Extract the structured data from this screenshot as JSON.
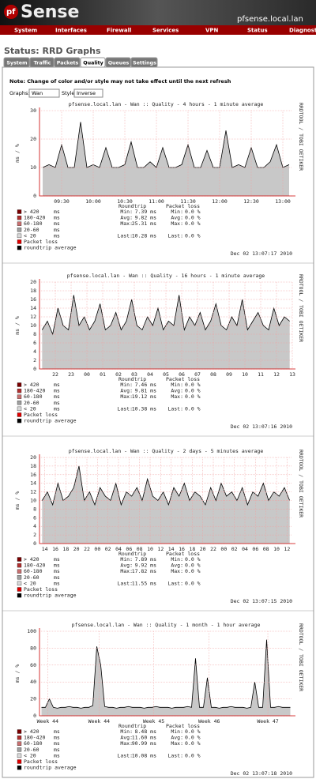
{
  "header": {
    "logo": "Sense",
    "hostname": "pfsense.local.lan"
  },
  "menu": [
    "System",
    "Interfaces",
    "Firewall",
    "Services",
    "VPN",
    "Status",
    "Diagnostic"
  ],
  "page_title": "Status: RRD Graphs",
  "tabs": [
    "System",
    "Traffic",
    "Packets",
    "Quality",
    "Queues",
    "Settings"
  ],
  "active_tab": "Quality",
  "note": "Note: Change of color and/or style may not take effect until the next refresh",
  "controls": {
    "graphs_label": "Graphs:",
    "graphs_value": "Wan",
    "style_label": "Style:",
    "style_value": "Inverse"
  },
  "legend": {
    "items": [
      {
        "label": "> 420",
        "unit": "ms",
        "color": "#7a0000"
      },
      {
        "label": "180-420",
        "unit": "ms",
        "color": "#b03030"
      },
      {
        "label": "60-180",
        "unit": "ms",
        "color": "#c87070"
      },
      {
        "label": "20-60",
        "unit": "ms",
        "color": "#a0a0a0"
      },
      {
        "label": "< 20",
        "unit": "ms",
        "color": "#d8d8d8"
      },
      {
        "label": "Packet loss",
        "color": "#e00000"
      },
      {
        "label": "roundtrip average",
        "color": "#000000"
      }
    ],
    "roundtrip_header": "Roundtrip",
    "loss_header": "Packet loss",
    "stat_labels": [
      "Min:",
      "Avg:",
      "Max:",
      "Last:"
    ]
  },
  "watermark": "RRDTOOL / TOBI OETIKER",
  "charts": [
    {
      "title": "pfsense.local.lan - Wan :: Quality - 4 hours - 1 minute average",
      "y_label": "ms / %",
      "ylim": [
        0,
        30
      ],
      "yticks": [
        0,
        10,
        20,
        30
      ],
      "xlim": [
        0,
        240
      ],
      "xticks": [
        {
          "value": 21,
          "label": "09:30"
        },
        {
          "value": 51,
          "label": "10:00"
        },
        {
          "value": 81,
          "label": "10:30"
        },
        {
          "value": 111,
          "label": "11:00"
        },
        {
          "value": 141,
          "label": "11:30"
        },
        {
          "value": 171,
          "label": "12:00"
        },
        {
          "value": 201,
          "label": "12:30"
        },
        {
          "value": 231,
          "label": "13:00"
        }
      ],
      "values": [
        10,
        11,
        10,
        18,
        10,
        10,
        26,
        10,
        11,
        10,
        17,
        10,
        10,
        11,
        19,
        10,
        10,
        12,
        10,
        17,
        10,
        10,
        11,
        18,
        10,
        10,
        16,
        10,
        10,
        23,
        10,
        11,
        10,
        17,
        10,
        10,
        12,
        18,
        10,
        11
      ],
      "roundtrip": [
        "7.39 ms",
        "9.82 ms",
        "25.31 ms",
        "10.28 ms"
      ],
      "loss": [
        "0.0 %",
        "0.0 %",
        "0.0 %",
        "0.0 %"
      ],
      "timestamp": "Dec 02 13:07:17 2010"
    },
    {
      "title": "pfsense.local.lan - Wan :: Quality - 16 hours - 1 minute average",
      "y_label": "ms / %",
      "ylim": [
        0,
        20
      ],
      "yticks": [
        0,
        2,
        4,
        6,
        8,
        10,
        12,
        14,
        16,
        18,
        20
      ],
      "xlim": [
        0,
        16
      ],
      "xticks": [
        {
          "value": 1,
          "label": "22"
        },
        {
          "value": 2,
          "label": "23"
        },
        {
          "value": 3,
          "label": "00"
        },
        {
          "value": 4,
          "label": "01"
        },
        {
          "value": 5,
          "label": "02"
        },
        {
          "value": 6,
          "label": "03"
        },
        {
          "value": 7,
          "label": "04"
        },
        {
          "value": 8,
          "label": "05"
        },
        {
          "value": 9,
          "label": "06"
        },
        {
          "value": 10,
          "label": "07"
        },
        {
          "value": 11,
          "label": "08"
        },
        {
          "value": 12,
          "label": "09"
        },
        {
          "value": 13,
          "label": "10"
        },
        {
          "value": 14,
          "label": "11"
        },
        {
          "value": 15,
          "label": "12"
        },
        {
          "value": 16,
          "label": "13"
        }
      ],
      "values": [
        9,
        11,
        8,
        14,
        10,
        9,
        17,
        10,
        12,
        9,
        11,
        15,
        9,
        10,
        13,
        9,
        11,
        16,
        10,
        9,
        12,
        10,
        14,
        9,
        11,
        10,
        17,
        9,
        12,
        10,
        13,
        9,
        11,
        15,
        10,
        9,
        12,
        10,
        16,
        9,
        11,
        13,
        10,
        9,
        14,
        10,
        12,
        11
      ],
      "roundtrip": [
        "7.46 ms",
        "9.81 ms",
        "19.12 ms",
        "10.38 ms"
      ],
      "loss": [
        "0.0 %",
        "0.0 %",
        "0.0 %",
        "0.0 %"
      ],
      "timestamp": "Dec 02 13:07:16 2010"
    },
    {
      "title": "pfsense.local.lan - Wan :: Quality - 2 days - 5 minutes average",
      "y_label": "ms / %",
      "ylim": [
        0,
        20
      ],
      "yticks": [
        0,
        2,
        4,
        6,
        8,
        10,
        12,
        14,
        16,
        18,
        20
      ],
      "xlim": [
        0,
        48
      ],
      "xticks": [
        {
          "value": 1,
          "label": "14"
        },
        {
          "value": 3,
          "label": "16"
        },
        {
          "value": 5,
          "label": "18"
        },
        {
          "value": 7,
          "label": "20"
        },
        {
          "value": 9,
          "label": "22"
        },
        {
          "value": 11,
          "label": "00"
        },
        {
          "value": 13,
          "label": "02"
        },
        {
          "value": 15,
          "label": "04"
        },
        {
          "value": 17,
          "label": "06"
        },
        {
          "value": 19,
          "label": "08"
        },
        {
          "value": 21,
          "label": "10"
        },
        {
          "value": 23,
          "label": "12"
        },
        {
          "value": 25,
          "label": "14"
        },
        {
          "value": 27,
          "label": "16"
        },
        {
          "value": 29,
          "label": "18"
        },
        {
          "value": 31,
          "label": "20"
        },
        {
          "value": 33,
          "label": "22"
        },
        {
          "value": 35,
          "label": "00"
        },
        {
          "value": 37,
          "label": "02"
        },
        {
          "value": 39,
          "label": "04"
        },
        {
          "value": 41,
          "label": "06"
        },
        {
          "value": 43,
          "label": "08"
        },
        {
          "value": 45,
          "label": "10"
        },
        {
          "value": 47,
          "label": "12"
        }
      ],
      "values": [
        10,
        12,
        9,
        14,
        10,
        11,
        13,
        18,
        10,
        12,
        9,
        13,
        11,
        10,
        14,
        9,
        12,
        11,
        13,
        10,
        15,
        11,
        10,
        12,
        9,
        13,
        11,
        14,
        10,
        12,
        11,
        9,
        13,
        10,
        14,
        11,
        12,
        10,
        13,
        9,
        12,
        11,
        14,
        10,
        12,
        11,
        13,
        10
      ],
      "roundtrip": [
        "7.89 ms",
        "9.92 ms",
        "17.82 ms",
        "11.55 ms"
      ],
      "loss": [
        "0.0 %",
        "0.0 %",
        "0.0 %",
        "0.0 %"
      ],
      "timestamp": "Dec 02 13:07:15 2010"
    },
    {
      "title": "pfsense.local.lan - Wan :: Quality - 1 month - 1 hour average",
      "y_label": "ms / %",
      "ylim": [
        0,
        100
      ],
      "yticks": [
        0,
        20,
        40,
        60,
        80,
        100
      ],
      "xlim": [
        0,
        31
      ],
      "xticks": [
        {
          "value": 1,
          "label": "Week 44"
        },
        {
          "value": 7.3,
          "label": "Week 44"
        },
        {
          "value": 14,
          "label": "Week 45"
        },
        {
          "value": 20.8,
          "label": "Week 46"
        },
        {
          "value": 28,
          "label": "Week 47"
        }
      ],
      "values": [
        10,
        10,
        20,
        10,
        9,
        10,
        10,
        11,
        10,
        10,
        9,
        10,
        10,
        12,
        82,
        60,
        11,
        10,
        10,
        9,
        10,
        10,
        11,
        10,
        10,
        10,
        9,
        10,
        10,
        11,
        10,
        10,
        10,
        9,
        10,
        10,
        10,
        11,
        10,
        68,
        10,
        10,
        45,
        10,
        10,
        9,
        10,
        10,
        11,
        10,
        10,
        10,
        9,
        10,
        40,
        10,
        10,
        90,
        10,
        10,
        11,
        10,
        10,
        10
      ],
      "roundtrip": [
        "8.48 ms",
        "11.60 ms",
        "90.99 ms",
        "10.08 ms"
      ],
      "loss": [
        "0.0 %",
        "0.0 %",
        "0.0 %",
        "0.0 %"
      ],
      "timestamp": "Dec 02 13:07:18 2010"
    }
  ]
}
